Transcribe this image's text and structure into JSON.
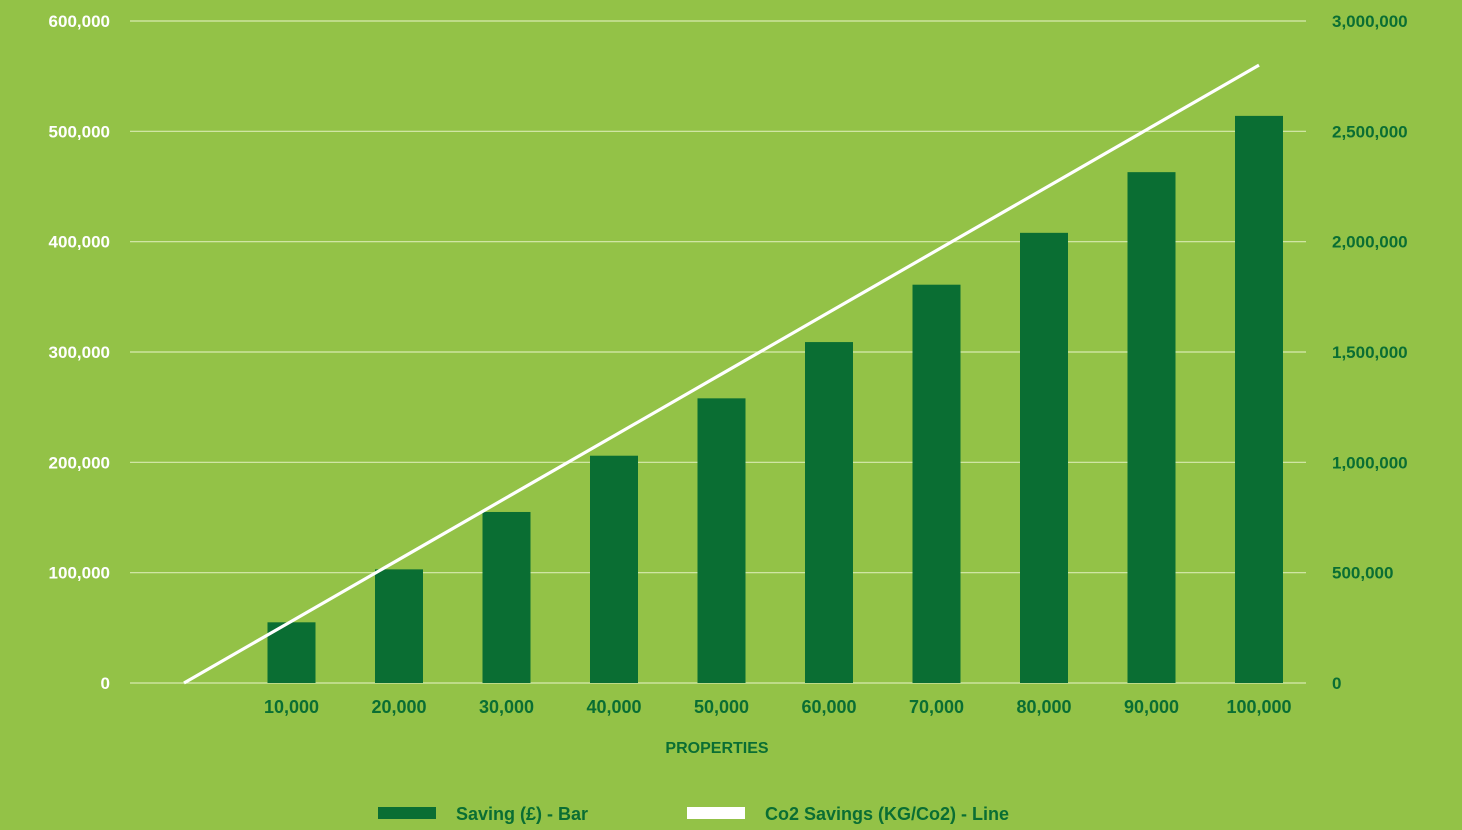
{
  "chart_data": {
    "type": "bar",
    "categories": [
      "10,000",
      "20,000",
      "30,000",
      "40,000",
      "50,000",
      "60,000",
      "70,000",
      "80,000",
      "90,000",
      "100,000"
    ],
    "series": [
      {
        "name": "Saving (£) - Bar",
        "type": "bar",
        "axis": "left",
        "values": [
          55000,
          103000,
          155000,
          206000,
          258000,
          309000,
          361000,
          408000,
          463000,
          514000
        ]
      },
      {
        "name": "Co2 Savings (KG/Co2) - Line",
        "type": "line",
        "axis": "right",
        "x": [
          0,
          10000,
          20000,
          30000,
          40000,
          50000,
          60000,
          70000,
          80000,
          90000,
          100000
        ],
        "values": [
          0,
          280000,
          560000,
          840000,
          1120000,
          1400000,
          1680000,
          1960000,
          2240000,
          2520000,
          2800000
        ]
      }
    ],
    "xlabel": "PROPERTIES",
    "y_left": {
      "lim": [
        0,
        600000
      ],
      "ticks": [
        0,
        100000,
        200000,
        300000,
        400000,
        500000,
        600000
      ],
      "tick_labels": [
        "0",
        "100,000",
        "200,000",
        "300,000",
        "400,000",
        "500,000",
        "600,000"
      ]
    },
    "y_right": {
      "lim": [
        0,
        3000000
      ],
      "ticks": [
        0,
        500000,
        1000000,
        1500000,
        2000000,
        2500000,
        3000000
      ],
      "tick_labels": [
        "0",
        "500,000",
        "1,000,000",
        "1,500,000",
        "2,000,000",
        "2,500,000",
        "3,000,000"
      ]
    },
    "grid": true,
    "legend": "bottom-center",
    "colors": {
      "background": "#93c247",
      "bar": "#0a6e33",
      "line": "#ffffff",
      "grid": "#d8eab0",
      "left_ticks": "#ffffff",
      "right_ticks": "#0a6e33",
      "x_ticks": "#0a6e33"
    }
  }
}
